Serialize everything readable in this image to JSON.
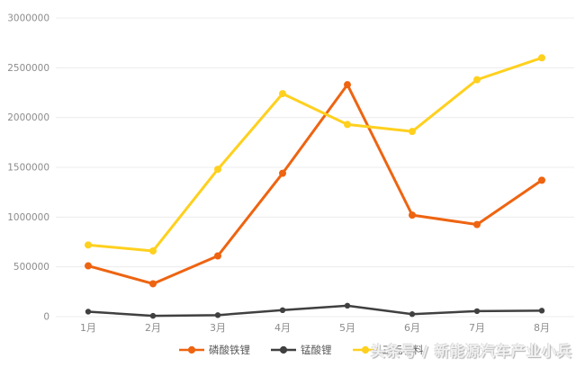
{
  "watermark": "头条号 / 新能源汽车产业小兵",
  "colors": {
    "background": "#ffffff",
    "grid": "#ececec",
    "axis_text": "#8c8c8c",
    "legend_text": "#595959",
    "watermark": "#e8e8e8"
  },
  "chart_data": {
    "type": "line",
    "title": "",
    "xlabel": "",
    "ylabel": "",
    "grid": true,
    "legend_position": "bottom",
    "categories": [
      "1月",
      "2月",
      "3月",
      "4月",
      "5月",
      "6月",
      "7月",
      "8月"
    ],
    "series": [
      {
        "name": "磷酸铁锂",
        "color": "#EE6411",
        "values": [
          510000,
          330000,
          610000,
          1440000,
          2330000,
          1020000,
          925000,
          1370000
        ]
      },
      {
        "name": "锰酸锂",
        "color": "#404040",
        "values": [
          50000,
          8000,
          15000,
          65000,
          110000,
          25000,
          55000,
          60000
        ]
      },
      {
        "name": "三元材料",
        "color": "#FFD01E",
        "values": [
          720000,
          660000,
          1480000,
          2240000,
          1930000,
          1860000,
          2380000,
          2600000
        ]
      }
    ],
    "ylim": [
      0,
      3000000
    ],
    "yticks": [
      0,
      500000,
      1000000,
      1500000,
      2000000,
      2500000,
      3000000
    ]
  }
}
